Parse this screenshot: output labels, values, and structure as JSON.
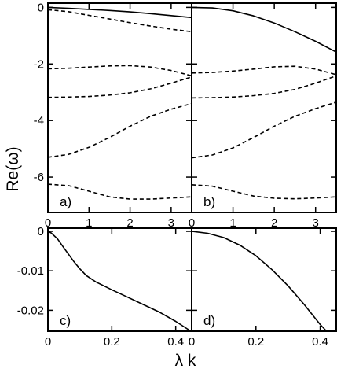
{
  "figure": {
    "ylabel": "Re(ω)",
    "xlabel": "λ k"
  },
  "chart_data": [
    {
      "type": "line",
      "panel_label": "a)",
      "xlim": [
        0,
        3.5
      ],
      "ylim": [
        -7.25,
        0.15
      ],
      "xticks": [
        0,
        1,
        2,
        3
      ],
      "yticks": [
        0,
        -2,
        -4,
        -6
      ],
      "series": [
        {
          "style": "solid",
          "x": [
            0,
            0.5,
            1,
            1.5,
            2,
            2.5,
            3,
            3.5
          ],
          "y": [
            0.0,
            -0.03,
            -0.07,
            -0.11,
            -0.16,
            -0.22,
            -0.29,
            -0.36
          ]
        },
        {
          "style": "dashed",
          "x": [
            0,
            0.5,
            1,
            1.5,
            2,
            2.5,
            3,
            3.5
          ],
          "y": [
            -0.08,
            -0.15,
            -0.28,
            -0.41,
            -0.54,
            -0.66,
            -0.77,
            -0.86
          ]
        },
        {
          "style": "dashed",
          "x": [
            0,
            0.5,
            1,
            1.5,
            2,
            2.5,
            3,
            3.5
          ],
          "y": [
            -2.17,
            -2.15,
            -2.11,
            -2.07,
            -2.06,
            -2.11,
            -2.23,
            -2.42
          ]
        },
        {
          "style": "dashed",
          "x": [
            0,
            0.5,
            1,
            1.5,
            2,
            2.5,
            3,
            3.5
          ],
          "y": [
            -3.18,
            -3.17,
            -3.15,
            -3.1,
            -3.02,
            -2.88,
            -2.68,
            -2.46
          ]
        },
        {
          "style": "dashed",
          "x": [
            0,
            0.5,
            1,
            1.5,
            2,
            2.5,
            3,
            3.5
          ],
          "y": [
            -5.3,
            -5.2,
            -4.95,
            -4.6,
            -4.2,
            -3.85,
            -3.6,
            -3.4
          ]
        },
        {
          "style": "dashed",
          "x": [
            0,
            0.5,
            1,
            1.5,
            2,
            2.5,
            3,
            3.5
          ],
          "y": [
            -6.25,
            -6.3,
            -6.5,
            -6.7,
            -6.78,
            -6.78,
            -6.74,
            -6.7
          ]
        }
      ]
    },
    {
      "type": "line",
      "panel_label": "b)",
      "xlim": [
        0,
        3.5
      ],
      "ylim": [
        -7.25,
        0.15
      ],
      "xticks": [
        0,
        1,
        2,
        3
      ],
      "yticks": [
        0,
        -2,
        -4,
        -6
      ],
      "series": [
        {
          "style": "solid",
          "x": [
            0,
            0.5,
            1,
            1.5,
            2,
            2.5,
            3,
            3.5
          ],
          "y": [
            0.0,
            -0.02,
            -0.12,
            -0.3,
            -0.55,
            -0.86,
            -1.2,
            -1.58
          ]
        },
        {
          "style": "dashed",
          "x": [
            0,
            0.5,
            1,
            1.5,
            2,
            2.5,
            3,
            3.5
          ],
          "y": [
            -2.32,
            -2.3,
            -2.25,
            -2.18,
            -2.1,
            -2.08,
            -2.18,
            -2.38
          ]
        },
        {
          "style": "dashed",
          "x": [
            0,
            0.5,
            1,
            1.5,
            2,
            2.5,
            3,
            3.5
          ],
          "y": [
            -3.2,
            -3.19,
            -3.17,
            -3.12,
            -3.04,
            -2.9,
            -2.68,
            -2.42
          ]
        },
        {
          "style": "dashed",
          "x": [
            0,
            0.5,
            1,
            1.5,
            2,
            2.5,
            3,
            3.5
          ],
          "y": [
            -5.32,
            -5.22,
            -4.97,
            -4.6,
            -4.2,
            -3.85,
            -3.58,
            -3.35
          ]
        },
        {
          "style": "dashed",
          "x": [
            0,
            0.5,
            1,
            1.5,
            2,
            2.5,
            3,
            3.5
          ],
          "y": [
            -6.27,
            -6.32,
            -6.5,
            -6.67,
            -6.75,
            -6.77,
            -6.74,
            -6.7
          ]
        }
      ]
    },
    {
      "type": "line",
      "panel_label": "c)",
      "xlim": [
        0,
        0.45
      ],
      "ylim": [
        -0.0253,
        0.0008
      ],
      "xticks": [
        0,
        0.2,
        0.4
      ],
      "xticklabels": [
        "0",
        "0.2",
        "0.4"
      ],
      "yticks": [
        0,
        -0.01,
        -0.02
      ],
      "yticklabels": [
        "0",
        "-0.01",
        "-0.02"
      ],
      "series": [
        {
          "style": "solid",
          "x": [
            0,
            0.01,
            0.03,
            0.05,
            0.08,
            0.1,
            0.12,
            0.15,
            0.2,
            0.25,
            0.3,
            0.35,
            0.4,
            0.44
          ],
          "y": [
            0.0,
            -0.0004,
            -0.0019,
            -0.0042,
            -0.0075,
            -0.0095,
            -0.0112,
            -0.0128,
            -0.0148,
            -0.0167,
            -0.0186,
            -0.0205,
            -0.0228,
            -0.0249
          ]
        }
      ]
    },
    {
      "type": "line",
      "panel_label": "d)",
      "xlim": [
        0,
        0.45
      ],
      "ylim": [
        -0.0253,
        0.0008
      ],
      "xticks": [
        0,
        0.2,
        0.4
      ],
      "xticklabels": [
        "0",
        "0.2",
        "0.4"
      ],
      "yticks": [
        0,
        -0.01,
        -0.02
      ],
      "series": [
        {
          "style": "solid",
          "x": [
            0,
            0.05,
            0.1,
            0.15,
            0.2,
            0.25,
            0.3,
            0.35,
            0.4,
            0.42
          ],
          "y": [
            0.0,
            -0.0005,
            -0.0016,
            -0.0035,
            -0.0062,
            -0.0097,
            -0.0138,
            -0.0185,
            -0.0236,
            -0.0253
          ]
        }
      ]
    }
  ]
}
